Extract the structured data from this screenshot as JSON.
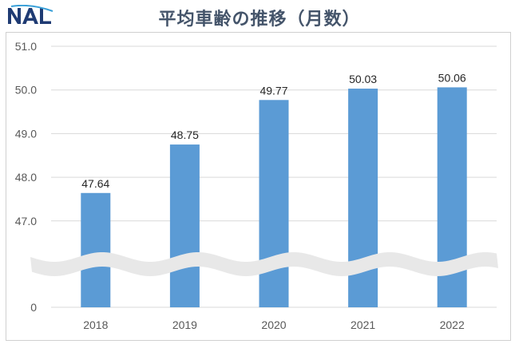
{
  "logo": {
    "text": "NAL",
    "icon": "nal-logo"
  },
  "header": {
    "title": "平均車齢の推移（月数）"
  },
  "colors": {
    "bar": "#5b9bd5",
    "title": "#44546a",
    "grid": "#d9d9d9",
    "break": "#e8e8e8"
  },
  "chart_data": {
    "type": "bar",
    "title": "平均車齢の推移（月数）",
    "categories": [
      "2018",
      "2019",
      "2020",
      "2021",
      "2022"
    ],
    "values": [
      47.64,
      48.75,
      49.77,
      50.03,
      50.06
    ],
    "data_labels": [
      "47.64",
      "48.75",
      "49.77",
      "50.03",
      "50.06"
    ],
    "y_ticks": [
      "51.0",
      "50.0",
      "49.0",
      "48.0",
      "47.0",
      "0"
    ],
    "ylim": [
      46.0,
      51.0
    ],
    "axis_break": true,
    "grid": true,
    "legend": "none",
    "xlabel": "",
    "ylabel": ""
  }
}
